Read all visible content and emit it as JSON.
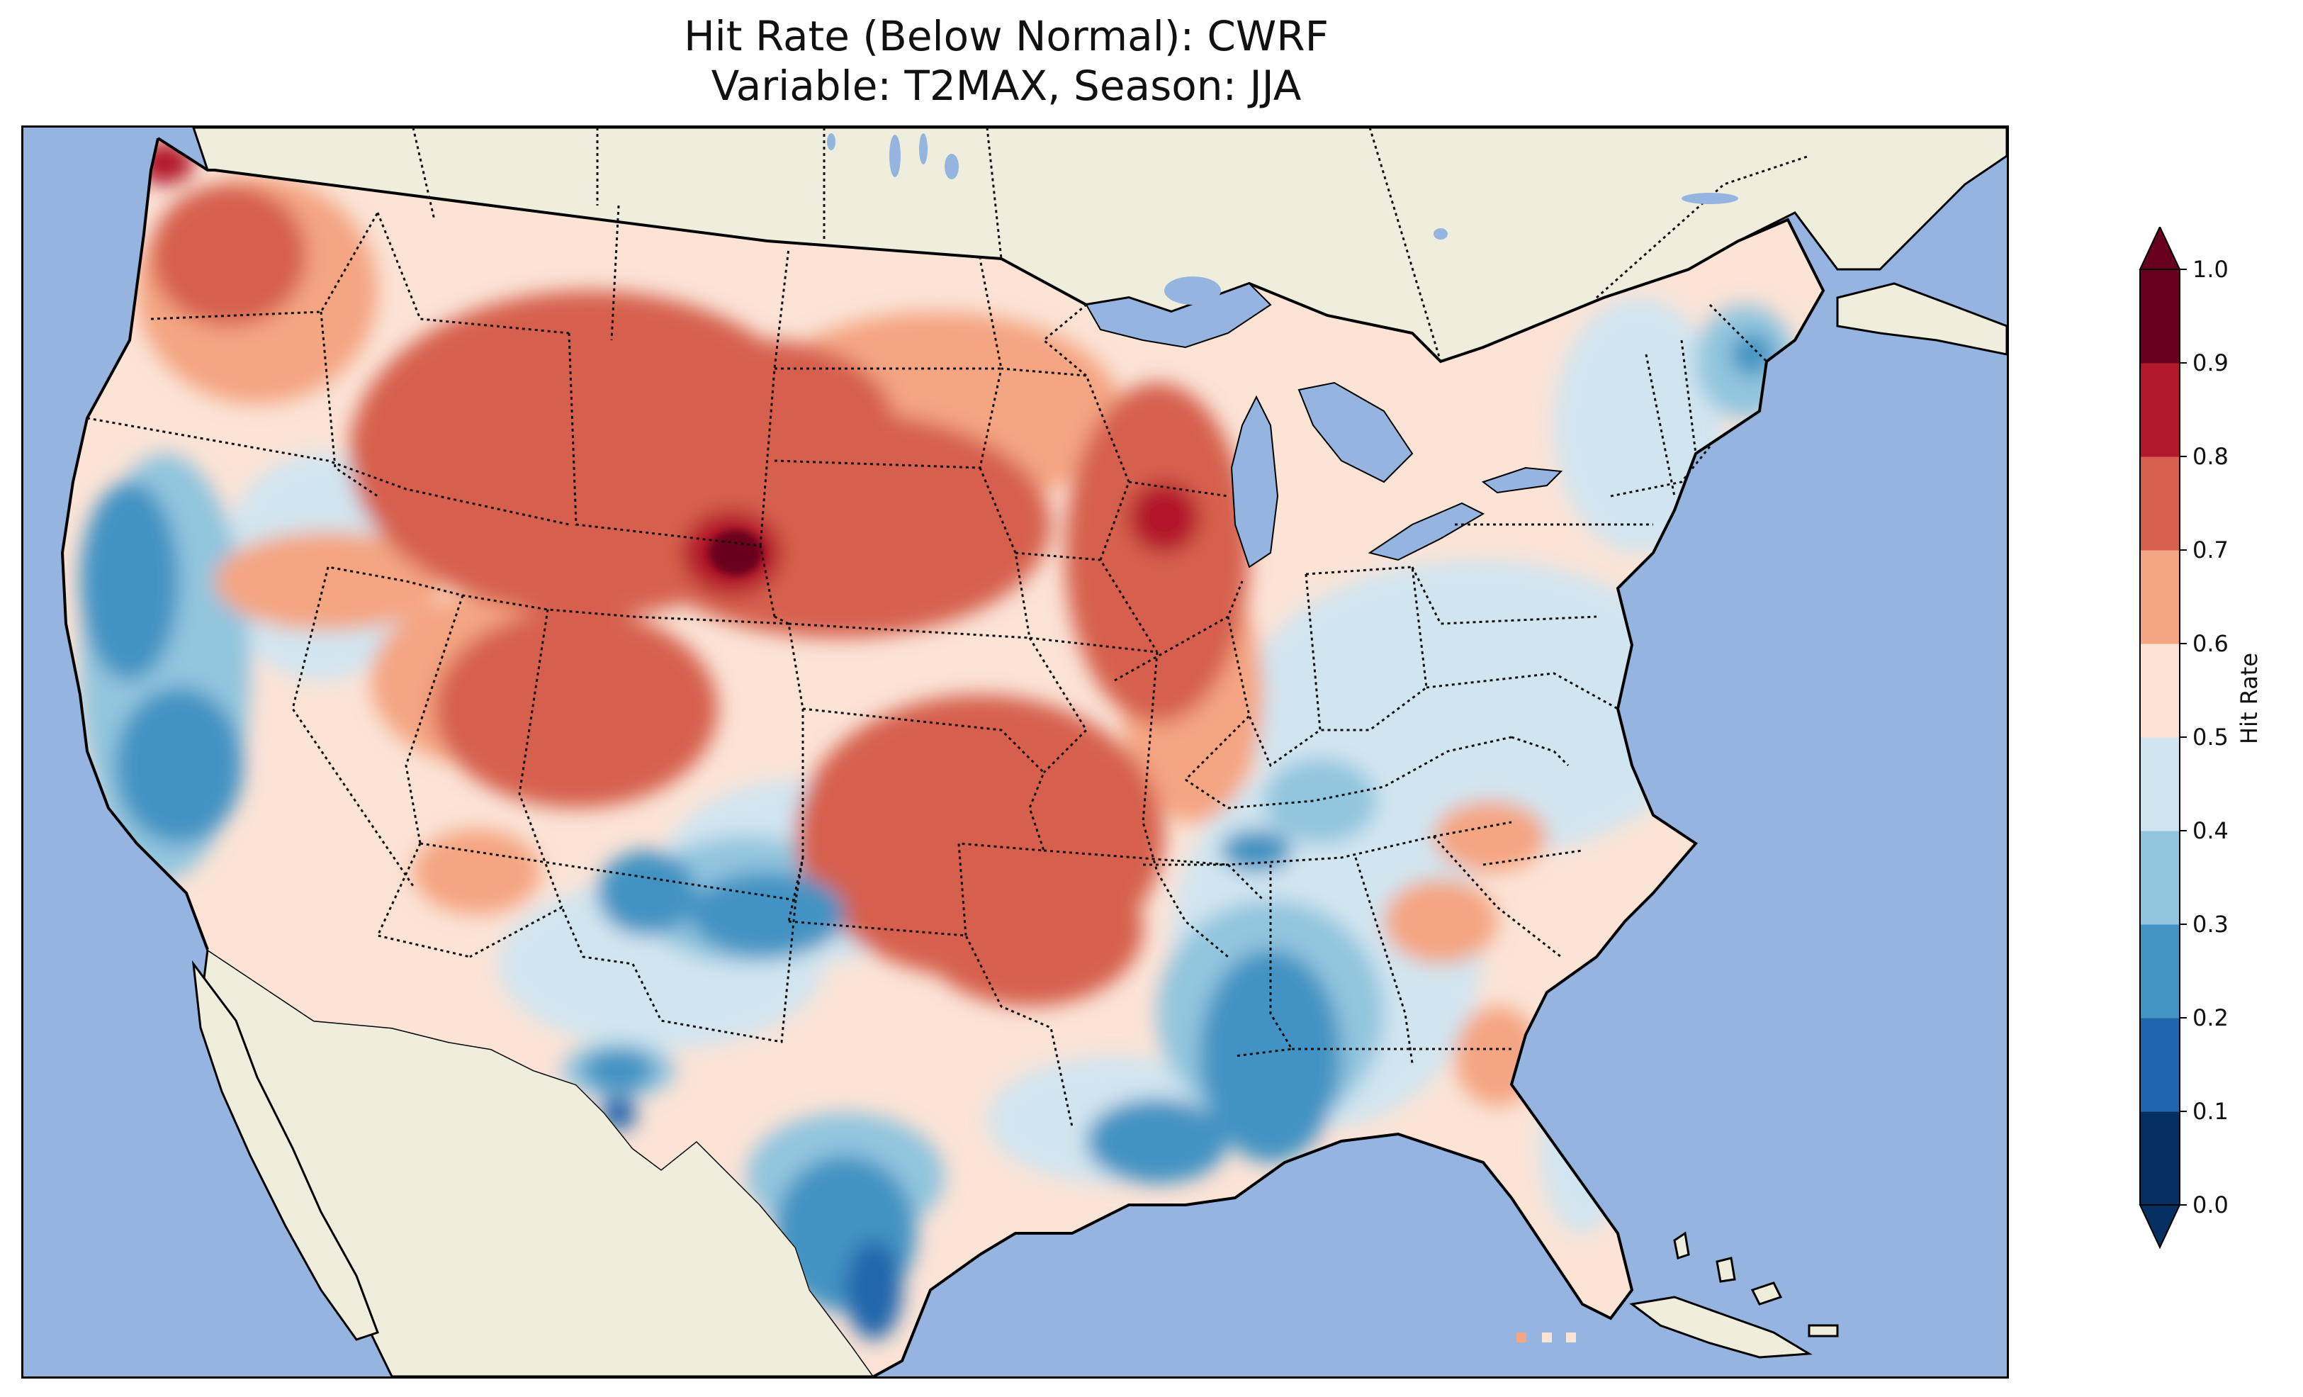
{
  "title_line1": "Hit Rate (Below Normal): CWRF",
  "title_line2": "Variable: T2MAX, Season: JJA",
  "map": {
    "projection": "Lambert Conformal, contiguous United States",
    "ocean_color": "#96b4e0",
    "land_color": "#efeddb",
    "lake_color": "#96b4e0",
    "regions": [
      {
        "name": "Pacific Northwest",
        "level": "0.7-0.8"
      },
      {
        "name": "Northwest Washington",
        "level": "0.8-0.9"
      },
      {
        "name": "Northern Rockies / Montana",
        "level": "0.7-0.8"
      },
      {
        "name": "Black Hills / western South Dakota",
        "level": "0.9-1.0"
      },
      {
        "name": "Northern Plains / Upper Midwest",
        "level": "0.7-0.8"
      },
      {
        "name": "Northern Wisconsin",
        "level": "0.8-0.9"
      },
      {
        "name": "Central Rockies / Colorado",
        "level": "0.7-0.8"
      },
      {
        "name": "Kansas / Oklahoma / Arkansas",
        "level": "0.7-0.8"
      },
      {
        "name": "California coast and valley",
        "level": "0.2-0.3"
      },
      {
        "name": "Northern California coast",
        "level": "0.2-0.3"
      },
      {
        "name": "Southern Rockies / New Mexico",
        "level": "0.2-0.3"
      },
      {
        "name": "Texas Gulf coast",
        "level": "0.1-0.2"
      },
      {
        "name": "Lower Mississippi / Gulf coast",
        "level": "0.2-0.3"
      },
      {
        "name": "Northern Maine",
        "level": "0.2-0.3"
      },
      {
        "name": "Ohio Valley / Mid-Atlantic",
        "level": "0.4-0.5"
      },
      {
        "name": "Southeast / Florida",
        "level": "0.5-0.6"
      },
      {
        "name": "Great Basin / Nevada",
        "level": "0.5-0.6"
      },
      {
        "name": "Carolinas",
        "level": "0.6-0.7"
      },
      {
        "name": "Northern Florida",
        "level": "0.6-0.7"
      }
    ]
  },
  "colorbar": {
    "label": "Hit Rate",
    "extend": "both",
    "ticks": [
      "0.0",
      "0.1",
      "0.2",
      "0.3",
      "0.4",
      "0.5",
      "0.6",
      "0.7",
      "0.8",
      "0.9",
      "1.0"
    ],
    "colors": [
      "#053061",
      "#2166ac",
      "#4393c3",
      "#92c5de",
      "#d1e5f0",
      "#fbe3d6",
      "#f4a582",
      "#d6604d",
      "#b2182b",
      "#67001f"
    ],
    "under_color": "#053061",
    "over_color": "#67001f"
  }
}
